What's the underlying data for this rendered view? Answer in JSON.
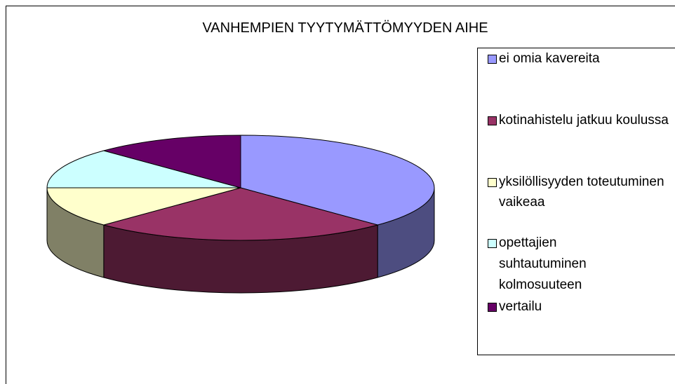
{
  "chart_data": {
    "type": "pie",
    "title": "VANHEMPIEN TYYTYMÄTTÖMYYDEN AIHE",
    "categories": [
      "ei omia kavereita",
      "kotinahistelu jatkuu koulussa",
      "yksilöllisyyden toteutuminen vaikeaa",
      "opettajien suhtautuminen kolmosuuteen",
      "vertailu"
    ],
    "values": [
      37.5,
      25,
      12.5,
      12.5,
      12.5
    ],
    "colors": [
      "#9999ff",
      "#993366",
      "#ffffcc",
      "#ccffff",
      "#660066"
    ],
    "legend": "right"
  }
}
